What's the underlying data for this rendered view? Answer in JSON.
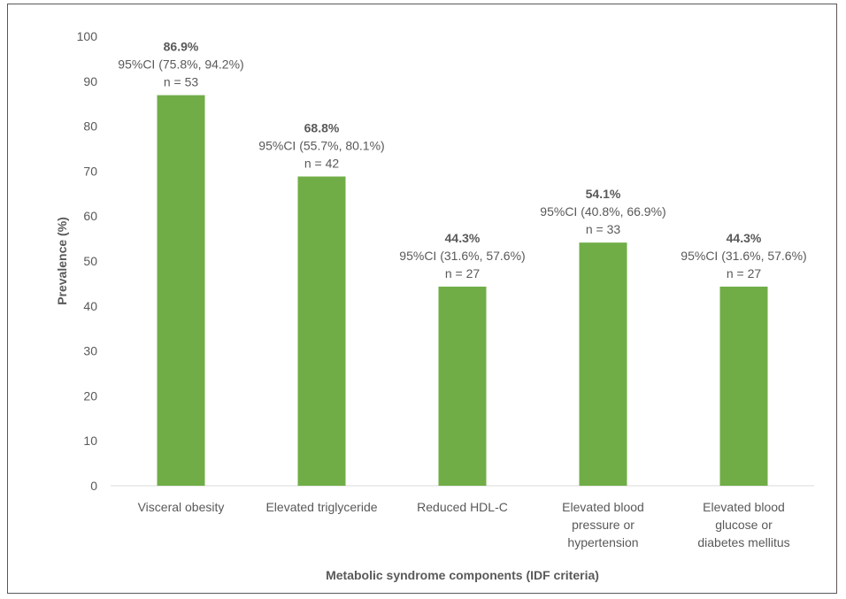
{
  "chart_data": {
    "type": "bar",
    "title": "",
    "xlabel": "Metabolic syndrome components (IDF criteria)",
    "ylabel": "Prevalence (%)",
    "ylim": [
      0,
      100
    ],
    "yticks": [
      0,
      10,
      20,
      30,
      40,
      50,
      60,
      70,
      80,
      90,
      100
    ],
    "categories": [
      [
        "Visceral obesity"
      ],
      [
        "Elevated triglyceride"
      ],
      [
        "Reduced HDL-C"
      ],
      [
        "Elevated blood",
        "pressure or",
        "hypertension"
      ],
      [
        "Elevated blood",
        "glucose or",
        "diabetes mellitus"
      ]
    ],
    "values": [
      86.9,
      68.8,
      44.3,
      54.1,
      44.3
    ],
    "data_labels": [
      {
        "pct": "86.9%",
        "ci": "95%CI (75.8%, 94.2%)",
        "n": "n = 53"
      },
      {
        "pct": "68.8%",
        "ci": "95%CI (55.7%, 80.1%)",
        "n": "n = 42"
      },
      {
        "pct": "44.3%",
        "ci": "95%CI (31.6%, 57.6%)",
        "n": "n = 27"
      },
      {
        "pct": "54.1%",
        "ci": "95%CI (40.8%, 66.9%)",
        "n": "n = 33"
      },
      {
        "pct": "44.3%",
        "ci": "95%CI (31.6%, 57.6%)",
        "n": "n = 27"
      }
    ],
    "bar_color": "#70ad47",
    "grid": false
  }
}
